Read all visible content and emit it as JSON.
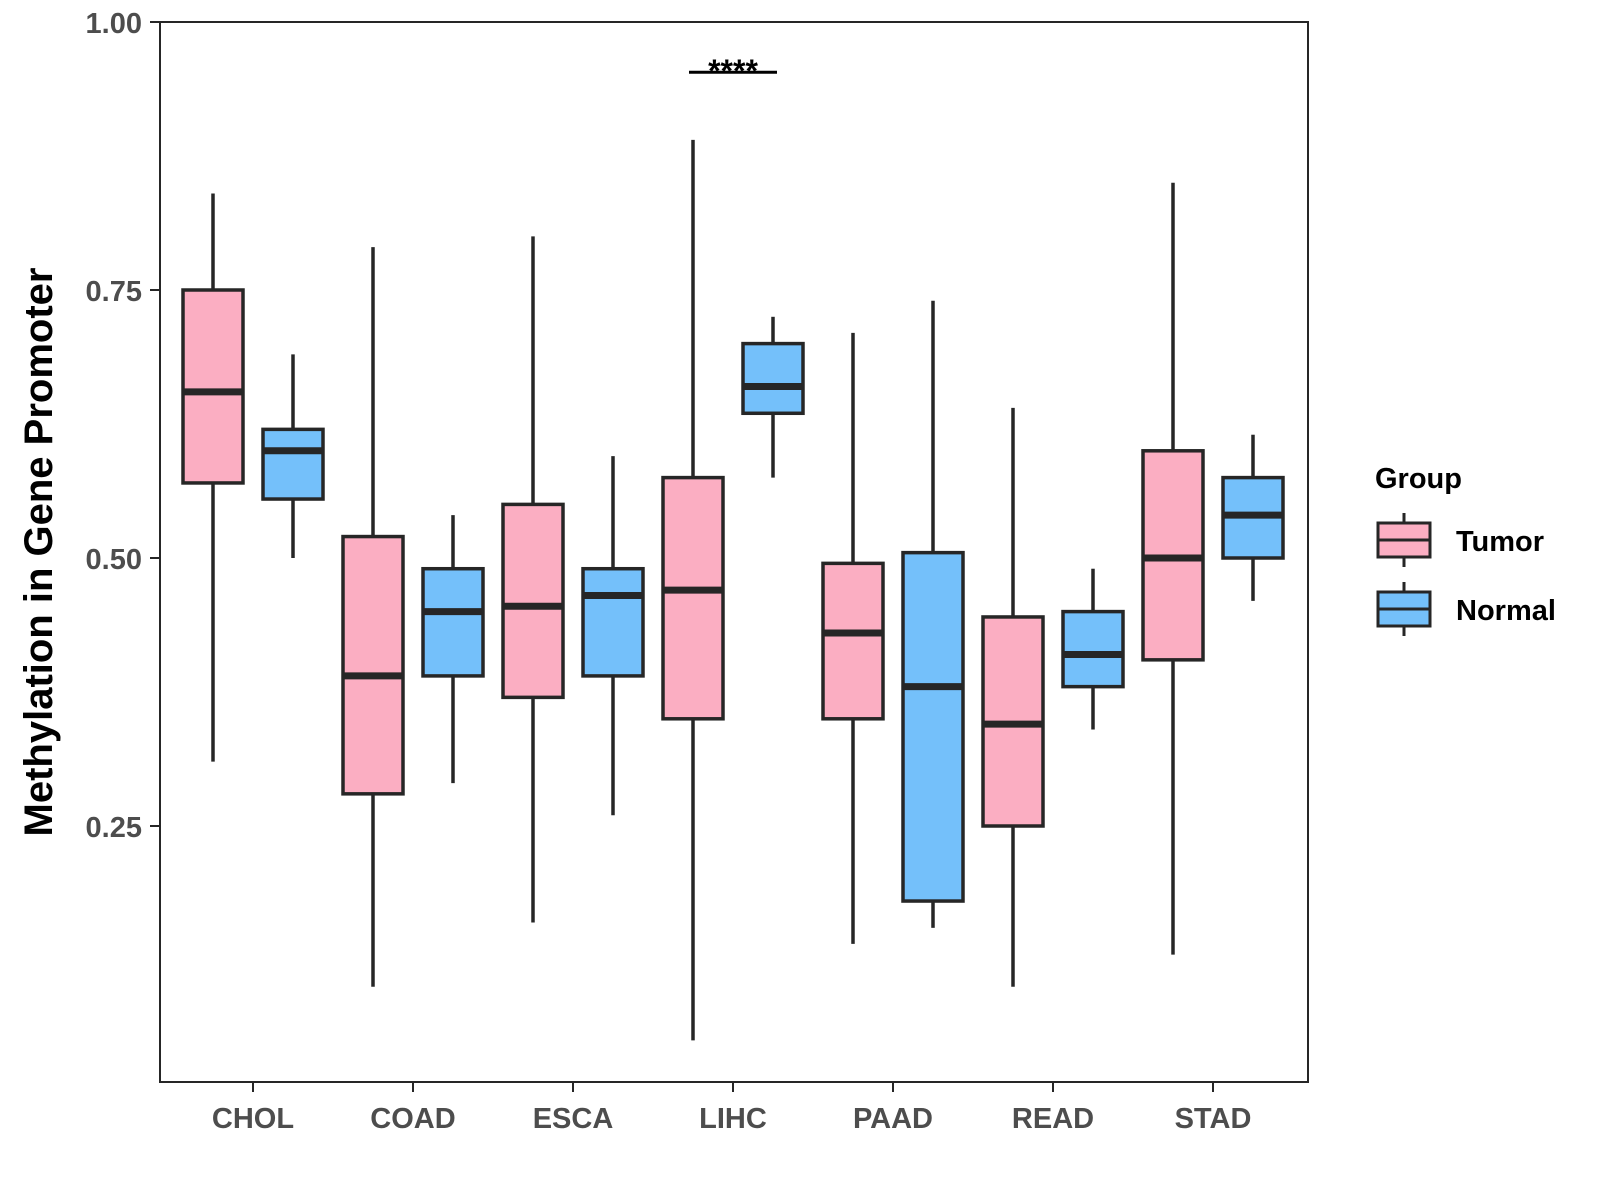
{
  "chart_data": {
    "type": "boxplot",
    "ylabel": "Methylation in Gene Promoter",
    "xlabel": "",
    "ylim": [
      0.0,
      1.0
    ],
    "yticks": [
      "0.25",
      "0.50",
      "0.75",
      "1.00"
    ],
    "categories": [
      "CHOL",
      "COAD",
      "ESCA",
      "LIHC",
      "PAAD",
      "READ",
      "STAD"
    ],
    "legend": {
      "title": "Group",
      "position": "right",
      "entries": [
        "Tumor",
        "Normal"
      ]
    },
    "colors": {
      "Tumor": "#FBAEC2",
      "Normal": "#74C0FA",
      "stroke": "#262626"
    },
    "series": [
      {
        "name": "Tumor",
        "boxes": [
          {
            "category": "CHOL",
            "min": 0.31,
            "q1": 0.57,
            "median": 0.655,
            "q3": 0.75,
            "max": 0.84
          },
          {
            "category": "COAD",
            "min": 0.1,
            "q1": 0.28,
            "median": 0.39,
            "q3": 0.52,
            "max": 0.79
          },
          {
            "category": "ESCA",
            "min": 0.16,
            "q1": 0.37,
            "median": 0.455,
            "q3": 0.55,
            "max": 0.8
          },
          {
            "category": "LIHC",
            "min": 0.05,
            "q1": 0.35,
            "median": 0.47,
            "q3": 0.575,
            "max": 0.89
          },
          {
            "category": "PAAD",
            "min": 0.14,
            "q1": 0.35,
            "median": 0.43,
            "q3": 0.495,
            "max": 0.71
          },
          {
            "category": "READ",
            "min": 0.1,
            "q1": 0.25,
            "median": 0.345,
            "q3": 0.445,
            "max": 0.64
          },
          {
            "category": "STAD",
            "min": 0.13,
            "q1": 0.405,
            "median": 0.5,
            "q3": 0.6,
            "max": 0.85
          }
        ]
      },
      {
        "name": "Normal",
        "boxes": [
          {
            "category": "CHOL",
            "min": 0.5,
            "q1": 0.555,
            "median": 0.6,
            "q3": 0.62,
            "max": 0.69
          },
          {
            "category": "COAD",
            "min": 0.29,
            "q1": 0.39,
            "median": 0.45,
            "q3": 0.49,
            "max": 0.54
          },
          {
            "category": "ESCA",
            "min": 0.26,
            "q1": 0.39,
            "median": 0.465,
            "q3": 0.49,
            "max": 0.595
          },
          {
            "category": "LIHC",
            "min": 0.575,
            "q1": 0.635,
            "median": 0.66,
            "q3": 0.7,
            "max": 0.725
          },
          {
            "category": "PAAD",
            "min": 0.155,
            "q1": 0.18,
            "median": 0.38,
            "q3": 0.505,
            "max": 0.74
          },
          {
            "category": "READ",
            "min": 0.34,
            "q1": 0.38,
            "median": 0.41,
            "q3": 0.45,
            "max": 0.49
          },
          {
            "category": "STAD",
            "min": 0.46,
            "q1": 0.5,
            "median": 0.54,
            "q3": 0.575,
            "max": 0.615
          }
        ]
      }
    ],
    "annotations": [
      {
        "category": "LIHC",
        "text": "****",
        "y": 0.955
      }
    ]
  }
}
